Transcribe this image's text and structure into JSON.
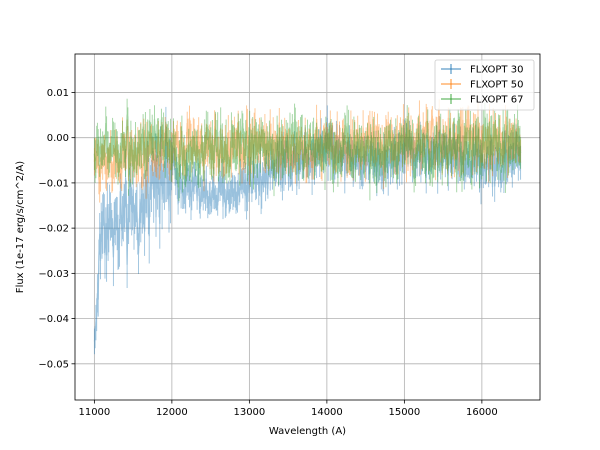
{
  "chart_data": {
    "type": "line",
    "title": "",
    "xlabel": "Wavelength (A)",
    "ylabel": "Flux (1e-17 erg/s/cm^2/A)",
    "xlim": [
      10750,
      16750
    ],
    "ylim": [
      -0.058,
      0.0185
    ],
    "xticks": [
      11000,
      12000,
      13000,
      14000,
      15000,
      16000
    ],
    "yticks": [
      -0.05,
      -0.04,
      -0.03,
      -0.02,
      -0.01,
      0.0,
      0.01
    ],
    "ytick_labels": [
      "−0.05",
      "−0.04",
      "−0.03",
      "−0.02",
      "−0.01",
      "0.00",
      "0.01"
    ],
    "grid": true,
    "legend_position": "top-right",
    "x_range": [
      11000,
      16500
    ],
    "series": [
      {
        "name": "FLXOPT 30",
        "color": "#1f77b4",
        "x": [
          11000,
          11100,
          11200,
          11300,
          11400,
          11500,
          11600,
          11700,
          11800,
          11900,
          12000,
          12200,
          12400,
          12600,
          12800,
          13000,
          13200,
          13400,
          13600,
          13800,
          14000,
          14200,
          14400,
          14600,
          14800,
          15000,
          15200,
          15400,
          15600,
          15800,
          16000,
          16200,
          16500
        ],
        "y": [
          -0.046,
          -0.018,
          -0.019,
          -0.021,
          -0.018,
          -0.017,
          -0.02,
          -0.011,
          -0.006,
          -0.009,
          -0.008,
          -0.01,
          -0.013,
          -0.013,
          -0.012,
          -0.009,
          -0.008,
          -0.006,
          -0.005,
          -0.004,
          -0.001,
          -0.003,
          -0.005,
          -0.006,
          -0.005,
          -0.003,
          -0.003,
          -0.004,
          -0.004,
          -0.005,
          -0.006,
          -0.006,
          -0.004
        ]
      },
      {
        "name": "FLXOPT 50",
        "color": "#ff7f0e",
        "x": [
          11000,
          11100,
          11200,
          11300,
          11400,
          11500,
          11600,
          11700,
          11800,
          11900,
          12000,
          12200,
          12400,
          12600,
          12800,
          13000,
          13200,
          13400,
          13600,
          13800,
          14000,
          14200,
          14400,
          14600,
          14800,
          15000,
          15200,
          15400,
          15600,
          15800,
          16000,
          16200,
          16500
        ],
        "y": [
          -0.006,
          -0.005,
          -0.004,
          -0.005,
          -0.003,
          -0.004,
          -0.005,
          -0.004,
          -0.003,
          -0.003,
          -0.002,
          -0.002,
          -0.002,
          -0.003,
          -0.002,
          -0.002,
          -0.001,
          -0.002,
          -0.003,
          -0.003,
          -0.002,
          -0.002,
          -0.002,
          -0.002,
          -0.001,
          -0.001,
          -0.001,
          -0.001,
          -0.001,
          -0.001,
          -0.001,
          -0.001,
          -0.001
        ]
      },
      {
        "name": "FLXOPT 67",
        "color": "#2ca02c",
        "x": [
          11000,
          11100,
          11200,
          11300,
          11400,
          11500,
          11600,
          11700,
          11800,
          11900,
          12000,
          12200,
          12400,
          12600,
          12800,
          13000,
          13200,
          13400,
          13600,
          13800,
          14000,
          14200,
          14400,
          14600,
          14800,
          15000,
          15200,
          15400,
          15600,
          15800,
          16000,
          16200,
          16500
        ],
        "y": [
          -0.004,
          -0.002,
          -0.003,
          -0.002,
          -0.001,
          -0.002,
          -0.003,
          -0.002,
          -0.002,
          -0.003,
          -0.004,
          -0.004,
          -0.003,
          -0.003,
          -0.002,
          -0.002,
          -0.002,
          -0.003,
          -0.002,
          -0.002,
          -0.002,
          -0.003,
          -0.003,
          -0.004,
          -0.003,
          -0.002,
          -0.002,
          -0.003,
          -0.003,
          -0.002,
          -0.002,
          -0.002,
          -0.001
        ]
      }
    ]
  }
}
